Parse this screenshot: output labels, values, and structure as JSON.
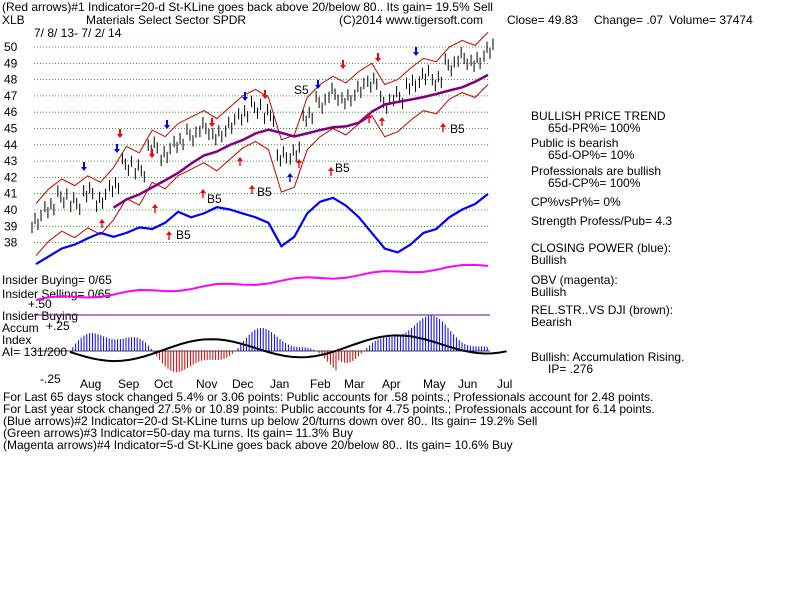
{
  "header": {
    "line1": "(Red arrows)#1 Indicator=20-d St-KLine goes back above 20/below 80.. Its gain= 19.5% Sell",
    "ticker": "XLB",
    "name": "Materials Select Sector SPDR",
    "copyright": "(C)2014 www.tigersoft.com",
    "close": "Close=  49.83",
    "change": "Change= .07",
    "volume": "Volume= 37474",
    "dates": "7/ 8/ 13- 7/ 2/ 14"
  },
  "side_panel": {
    "trend_title": "BULLISH PRICE TREND",
    "pr": "65d-PR%= 100%",
    "public_line": "Public is bearish",
    "op": "65d-OP%= 10%",
    "pros_line": "Professionals are bullish",
    "cp": "65d-CP%= 100%",
    "cpvspr": "CP%vsPr%=  0%",
    "strength": "Strength Profess/Pub= 4.3",
    "closing_power_title": "CLOSING POWER (blue):",
    "closing_power_value": "Bullish",
    "obv_title": "OBV (magenta):",
    "obv_value": "Bullish",
    "relstr_title": "REL.STR..VS DJI (brown):",
    "relstr_value": "Bearish",
    "accum_title": "Bullish: Accumulation Rising.",
    "ip": "IP=  .276"
  },
  "price_panel": {
    "insider_buying": "Insider Buying= 0/65",
    "insider_selling": "Insider Selling= 0/65",
    "minus50": "+.50",
    "s5_label": "S5",
    "b5_label": "B5"
  },
  "accum_panel": {
    "title1": "Insider Buying",
    "title2": "Accum",
    "title3": "Index",
    "ai": "AI= 131/200",
    "plus25": "+.25",
    "minus25": "-.25"
  },
  "footer": {
    "line1": "For Last 65 days stock changed  5.4% or  3.06 points:  Public accounts for  .58 points.;  Professionals account for  2.48 points.",
    "line2": "For Last year stock changed  27.5% or  10.89 points:  Public accounts for  4.75 points.;  Professionals account for  6.14 points.",
    "line3": "(Blue arrows)#2 Indicator=20-d St-KLine turns up below 20/turns down over 80.. Its gain= 19.2% Sell",
    "line4": "(Green arrows)#3 Indicator=50-day ma turns. Its gain= 11.3% Buy",
    "line5": "(Magenta arrows)#4 Indicator=5-d St-KLine goes back above 20/below 80.. Its gain= 10.6% Buy"
  },
  "colors": {
    "closing_power": "#0000ff",
    "obv": "#ff00ff",
    "ma50": "#800080",
    "bands": "#cc0000",
    "grid": "#008000",
    "accum_pos": "#0000ff",
    "accum_neg": "#cc0000",
    "sell_arrow": "#ff0000",
    "blue_arrow": "#0000ff"
  },
  "chart_data": {
    "type": "line",
    "ylim": [
      38,
      50
    ],
    "y_ticks": [
      "50",
      "49",
      "48",
      "47",
      "46",
      "45",
      "44",
      "43",
      "42",
      "41",
      "40",
      "39",
      "38"
    ],
    "x_ticks": [
      "Aug",
      "Sep",
      "Oct",
      "Nov",
      "Dec",
      "Jan",
      "Feb",
      "Mar",
      "Apr",
      "May",
      "Jun",
      "Jul"
    ],
    "price_close": [
      39.3,
      40.2,
      40.8,
      40.4,
      41.0,
      40.6,
      41.5,
      42.8,
      42.4,
      43.8,
      43.4,
      44.2,
      44.6,
      45.0,
      44.5,
      45.2,
      45.9,
      46.3,
      45.8,
      43.2,
      43.5,
      45.8,
      46.6,
      47.1,
      46.7,
      47.4,
      47.9,
      46.6,
      46.9,
      47.6,
      48.2,
      48.0,
      48.9,
      49.3,
      49.0,
      49.8
    ]
  }
}
